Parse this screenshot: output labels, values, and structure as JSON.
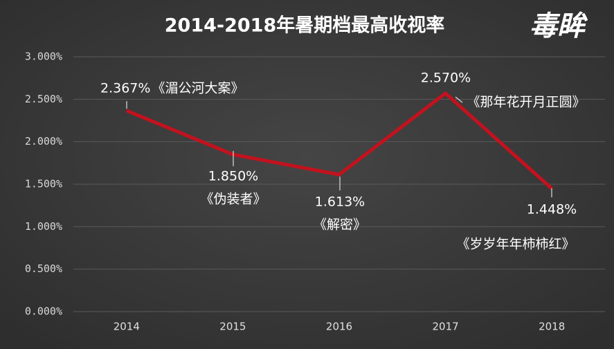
{
  "chart_data": {
    "type": "line",
    "title": "2014-2018年暑期档最高收视率",
    "watermark": "毒眸",
    "categories": [
      "2014",
      "2015",
      "2016",
      "2017",
      "2018"
    ],
    "values": [
      2.367,
      1.85,
      1.613,
      2.57,
      1.448
    ],
    "value_labels": [
      "2.367%",
      "1.850%",
      "1.613%",
      "2.570%",
      "1.448%"
    ],
    "show_names": [
      "《湄公河大案》",
      "《伪装者》",
      "《解密》",
      "《那年花开月正圆》",
      "《岁岁年年柿柿红》"
    ],
    "color": "#c3121e",
    "ylim": [
      0,
      3
    ],
    "yticks": [
      {
        "value": 0,
        "label": "0.000%"
      },
      {
        "value": 0.5,
        "label": "0.500%"
      },
      {
        "value": 1,
        "label": "1.000%"
      },
      {
        "value": 1.5,
        "label": "1.500%"
      },
      {
        "value": 2,
        "label": "2.000%"
      },
      {
        "value": 2.5,
        "label": "2.500%"
      },
      {
        "value": 3,
        "label": "3.000%"
      }
    ],
    "grid": true
  }
}
